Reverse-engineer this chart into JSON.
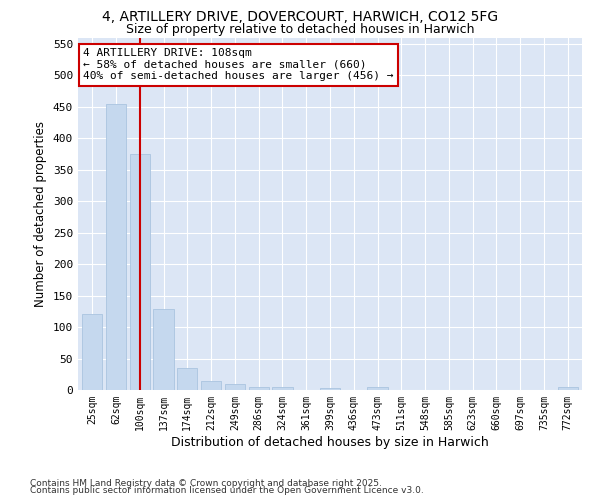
{
  "title": "4, ARTILLERY DRIVE, DOVERCOURT, HARWICH, CO12 5FG",
  "subtitle": "Size of property relative to detached houses in Harwich",
  "xlabel": "Distribution of detached houses by size in Harwich",
  "ylabel": "Number of detached properties",
  "categories": [
    "25sqm",
    "62sqm",
    "100sqm",
    "137sqm",
    "174sqm",
    "212sqm",
    "249sqm",
    "286sqm",
    "324sqm",
    "361sqm",
    "399sqm",
    "436sqm",
    "473sqm",
    "511sqm",
    "548sqm",
    "585sqm",
    "623sqm",
    "660sqm",
    "697sqm",
    "735sqm",
    "772sqm"
  ],
  "values": [
    120,
    455,
    375,
    128,
    35,
    15,
    9,
    5,
    4,
    0,
    3,
    0,
    5,
    0,
    0,
    0,
    0,
    0,
    0,
    0,
    4
  ],
  "bar_color": "#c5d8ee",
  "bar_edge_color": "#aac4e0",
  "vline_x_index": 2,
  "vline_color": "#cc0000",
  "annotation_text": "4 ARTILLERY DRIVE: 108sqm\n← 58% of detached houses are smaller (660)\n40% of semi-detached houses are larger (456) →",
  "annotation_box_color": "#ffffff",
  "annotation_box_edge": "#cc0000",
  "ylim": [
    0,
    560
  ],
  "yticks": [
    0,
    50,
    100,
    150,
    200,
    250,
    300,
    350,
    400,
    450,
    500,
    550
  ],
  "plot_bg_color": "#dce6f5",
  "fig_bg_color": "#ffffff",
  "grid_color": "#ffffff",
  "footer_line1": "Contains HM Land Registry data © Crown copyright and database right 2025.",
  "footer_line2": "Contains public sector information licensed under the Open Government Licence v3.0."
}
